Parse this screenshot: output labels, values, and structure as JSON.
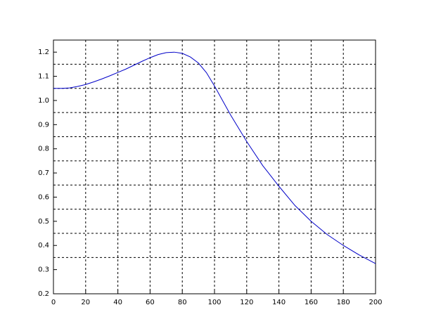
{
  "chart_data": {
    "type": "line",
    "x": [
      0,
      5,
      10,
      15,
      20,
      25,
      30,
      35,
      40,
      45,
      50,
      55,
      60,
      65,
      70,
      75,
      80,
      85,
      90,
      95,
      100,
      105,
      110,
      115,
      120,
      130,
      140,
      150,
      160,
      170,
      180,
      190,
      200
    ],
    "series": [
      {
        "color": "#0000c8",
        "values": [
          1.05,
          1.05,
          1.052,
          1.058,
          1.066,
          1.077,
          1.089,
          1.102,
          1.116,
          1.13,
          1.146,
          1.162,
          1.177,
          1.19,
          1.198,
          1.2,
          1.195,
          1.18,
          1.155,
          1.115,
          1.06,
          1.0,
          0.94,
          0.885,
          0.83,
          0.73,
          0.645,
          0.565,
          0.5,
          0.445,
          0.4,
          0.36,
          0.325
        ]
      }
    ],
    "xlim": [
      0,
      200
    ],
    "xticks": [
      0,
      20,
      40,
      60,
      80,
      100,
      120,
      140,
      160,
      180,
      200
    ],
    "ylim": [
      0.2,
      1.25
    ],
    "yticks": [
      0.2,
      0.3,
      0.4,
      0.5,
      0.6,
      0.7,
      0.8,
      0.9,
      {
        "value": 1.0,
        "label": "1.0"
      },
      1.1,
      1.2
    ],
    "ygrid": [
      0.35,
      0.45,
      0.55,
      0.65,
      0.75,
      0.85,
      0.95,
      1.05,
      1.15
    ],
    "grid": true
  }
}
